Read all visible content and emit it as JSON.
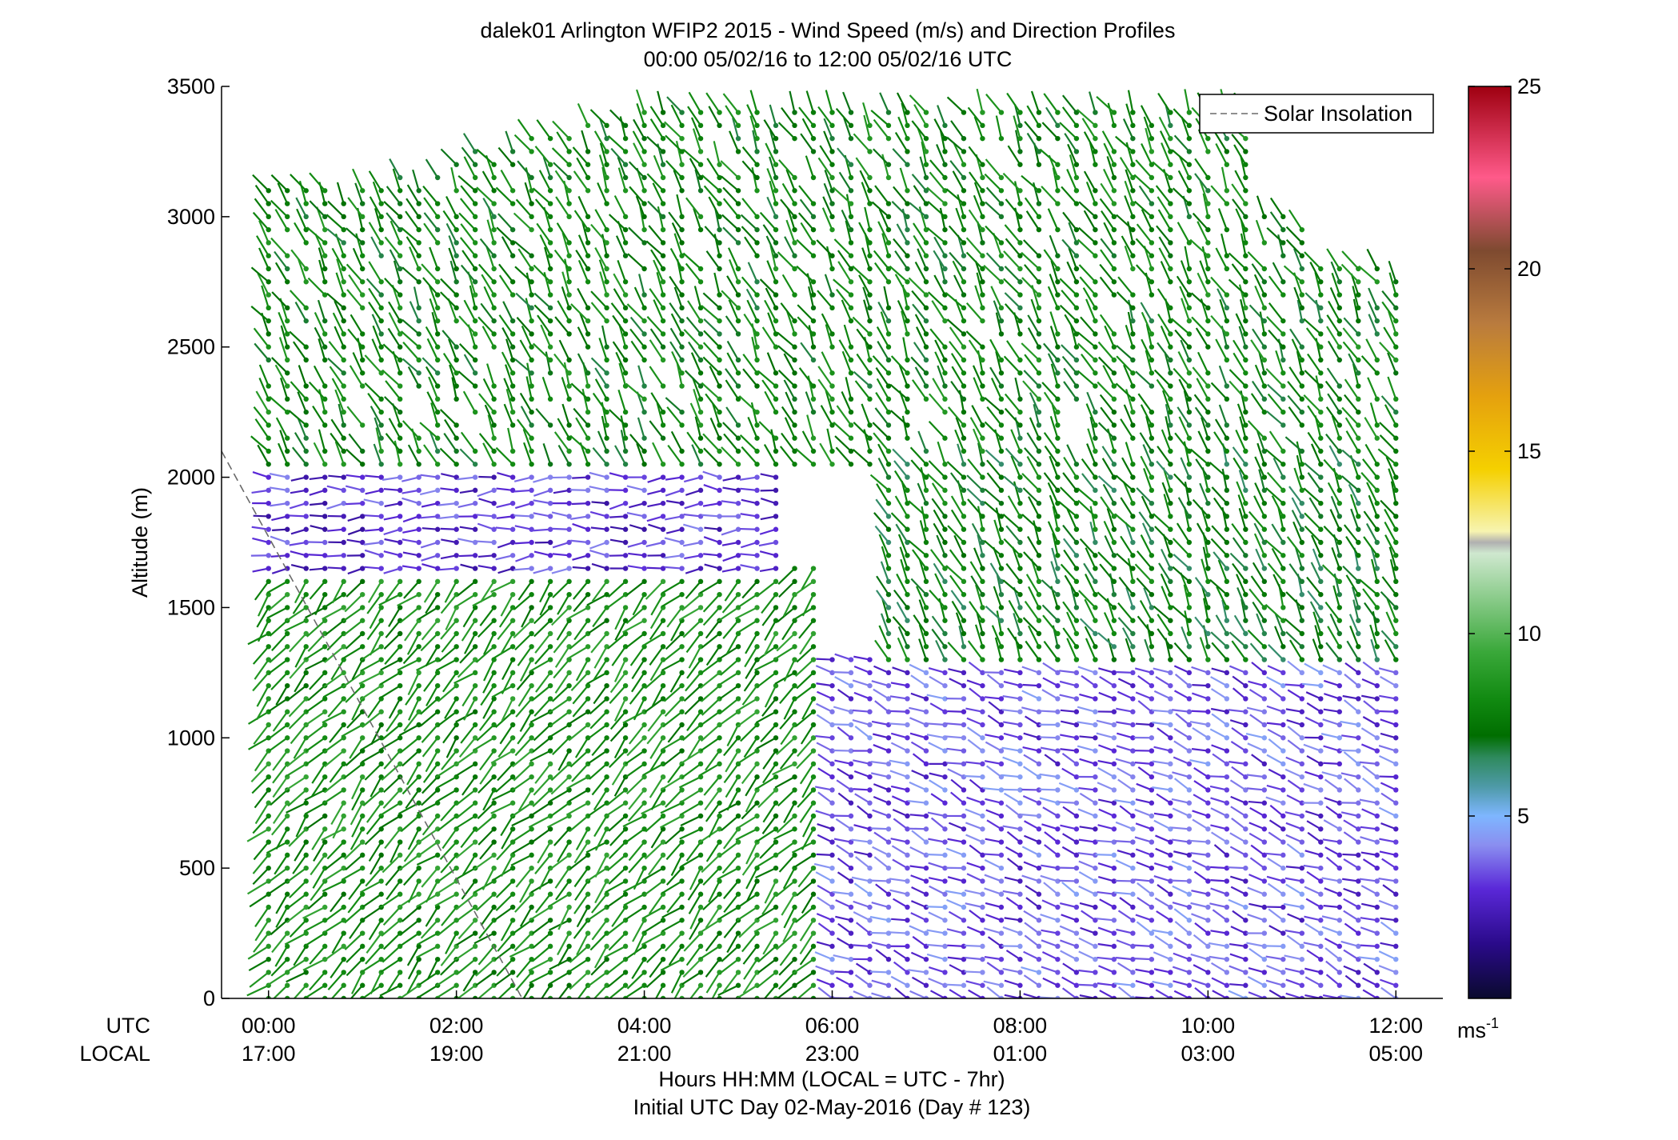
{
  "chart_data": {
    "type": "wind-barb-profile",
    "title": "dalek01 Arlington WFIP2 2015 - Wind Speed (m/s) and Direction Profiles",
    "subtitle": "00:00 05/02/16 to 12:00 05/02/16  UTC",
    "ylabel": "Altitude (m)",
    "xlabel": "Hours HH:MM  (LOCAL = UTC - 7hr)",
    "xlabel2": "Initial UTC Day 02-May-2016 (Day # 123)",
    "x_row_labels": [
      "UTC",
      "LOCAL"
    ],
    "xlim": [
      -0.5,
      12.5
    ],
    "ylim": [
      0,
      3500
    ],
    "x_ticks": [
      {
        "value": 0,
        "utc": "00:00",
        "local": "17:00"
      },
      {
        "value": 2,
        "utc": "02:00",
        "local": "19:00"
      },
      {
        "value": 4,
        "utc": "04:00",
        "local": "21:00"
      },
      {
        "value": 6,
        "utc": "06:00",
        "local": "23:00"
      },
      {
        "value": 8,
        "utc": "08:00",
        "local": "01:00"
      },
      {
        "value": 10,
        "utc": "10:00",
        "local": "03:00"
      },
      {
        "value": 12,
        "utc": "12:00",
        "local": "05:00"
      }
    ],
    "y_ticks": [
      {
        "value": 0,
        "label": "0"
      },
      {
        "value": 500,
        "label": "500"
      },
      {
        "value": 1000,
        "label": "1000"
      },
      {
        "value": 1500,
        "label": "1500"
      },
      {
        "value": 2000,
        "label": "2000"
      },
      {
        "value": 2500,
        "label": "2500"
      },
      {
        "value": 3000,
        "label": "3000"
      },
      {
        "value": 3500,
        "label": "3500"
      }
    ],
    "legend": {
      "label": "Solar Insolation",
      "position": "top-right",
      "style": "dashed"
    },
    "solar_insolation_line": {
      "x": [
        -0.5,
        2.7
      ],
      "y": [
        2100,
        0
      ],
      "color": "#666666"
    },
    "colorbar": {
      "min": 0,
      "max": 25,
      "ticks": [
        {
          "value": 5,
          "label": "5"
        },
        {
          "value": 10,
          "label": "10"
        },
        {
          "value": 15,
          "label": "15"
        },
        {
          "value": 20,
          "label": "20"
        },
        {
          "value": 25,
          "label": "25"
        }
      ],
      "units_base": "ms",
      "units_exp": "-1",
      "stops": [
        {
          "v": 0,
          "c": "#0a0a2e"
        },
        {
          "v": 1.5,
          "c": "#2a0a8a"
        },
        {
          "v": 3,
          "c": "#5a28d8"
        },
        {
          "v": 4.2,
          "c": "#8a8ef0"
        },
        {
          "v": 5,
          "c": "#7eb6ff"
        },
        {
          "v": 5.8,
          "c": "#4e9aa8"
        },
        {
          "v": 6.6,
          "c": "#2f8a5e"
        },
        {
          "v": 7.2,
          "c": "#006e00"
        },
        {
          "v": 8.2,
          "c": "#118a11"
        },
        {
          "v": 9.5,
          "c": "#3aa83a"
        },
        {
          "v": 11,
          "c": "#8ccc8c"
        },
        {
          "v": 12.2,
          "c": "#cfe8cf"
        },
        {
          "v": 12.5,
          "c": "#b0b0b0"
        },
        {
          "v": 12.8,
          "c": "#f7f4b0"
        },
        {
          "v": 14.5,
          "c": "#f5d000"
        },
        {
          "v": 16.5,
          "c": "#e5a10e"
        },
        {
          "v": 18.5,
          "c": "#b97b3e"
        },
        {
          "v": 20.5,
          "c": "#7e4a30"
        },
        {
          "v": 22.5,
          "c": "#ff5a8a"
        },
        {
          "v": 25,
          "c": "#9e0010"
        }
      ]
    },
    "wind_profile_regimes": [
      {
        "t_start": 0.0,
        "t_end": 6.0,
        "z_start": 0,
        "z_end": 1650,
        "speed": 8.3,
        "direction_deg": 225,
        "note": "southwest flow below inversion, green"
      },
      {
        "t_start": 0.0,
        "t_end": 5.5,
        "z_start": 1650,
        "z_end": 2050,
        "speed": 3.0,
        "direction_deg": 270,
        "note": "weak flow near 1800-2000 m, purple"
      },
      {
        "t_start": 0.0,
        "t_end": 12.0,
        "z_start": 2050,
        "z_end": 3400,
        "speed": 7.8,
        "direction_deg": 330,
        "note": "northwest flow aloft, green"
      },
      {
        "t_start": 6.0,
        "t_end": 12.0,
        "z_start": 0,
        "z_end": 1300,
        "speed": 3.5,
        "direction_deg": 290,
        "note": "weak low-level flow, purple"
      },
      {
        "t_start": 6.5,
        "t_end": 12.0,
        "z_start": 1300,
        "z_end": 2050,
        "speed": 7.5,
        "direction_deg": 330,
        "note": "moderate northwest flow, green"
      }
    ]
  }
}
